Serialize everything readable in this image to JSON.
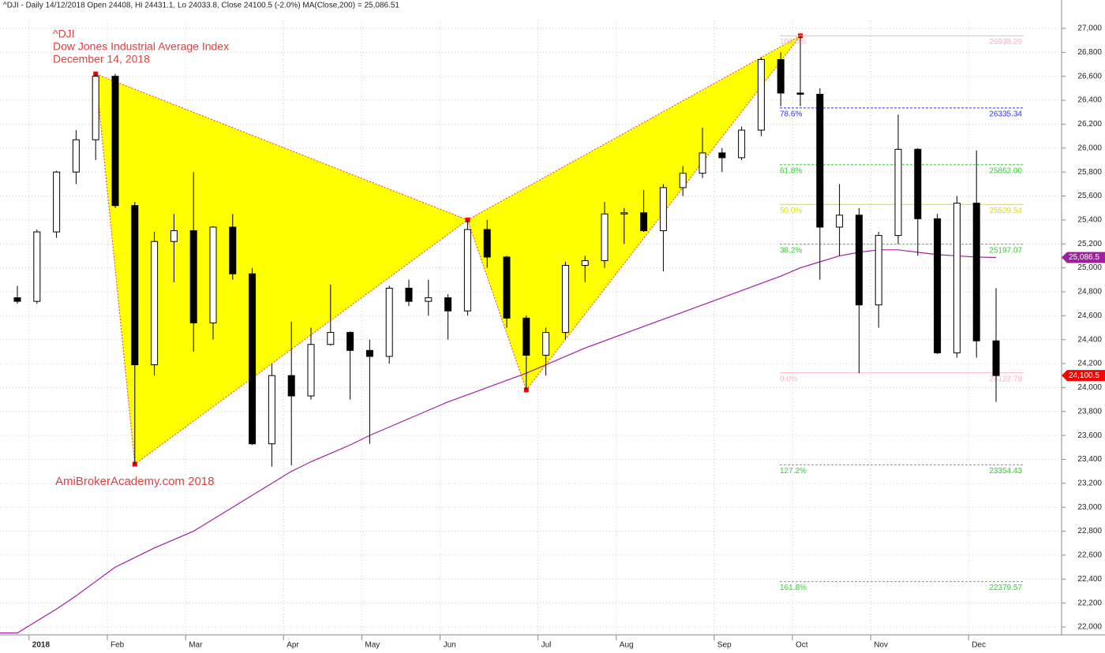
{
  "chart_data": {
    "type": "candlestick",
    "title": "^DJI - Daily 14/12/2018 Open 24408, Hi 24431.1, Lo 24033.8, Close 24100.5 (-2.0%) MA(Close,200) = 25,086.51",
    "annotations": [
      "^DJI",
      "Dow Jones Industrial Average Index",
      "December 14, 2018"
    ],
    "watermark": "AmiBrokerAcademy.com  2018",
    "categories": [
      null,
      "2018",
      null,
      null,
      null,
      "Feb",
      null,
      null,
      null,
      "Mar",
      null,
      null,
      null,
      null,
      "Apr",
      null,
      null,
      null,
      "May",
      null,
      null,
      null,
      "Jun",
      null,
      null,
      null,
      null,
      "Jul",
      null,
      null,
      null,
      "Aug",
      null,
      null,
      null,
      null,
      "Sep",
      null,
      null,
      null,
      "Oct",
      null,
      null,
      null,
      "Nov",
      null,
      null,
      null,
      null,
      "Dec",
      null
    ],
    "open": [
      24750,
      24720,
      25300,
      25800,
      26070,
      26600,
      25520,
      24190,
      25220,
      25310,
      24540,
      25340,
      24950,
      23530,
      24100,
      23930,
      24360,
      24460,
      24310,
      24260,
      24830,
      24720,
      24750,
      24640,
      25320,
      25090,
      24580,
      24270,
      24460,
      25020,
      25060,
      25450,
      25460,
      25310,
      25670,
      25790,
      25960,
      25920,
      26150,
      26740,
      26460,
      26450,
      25340,
      25440,
      24690,
      25270,
      25990,
      25410,
      24290,
      25540,
      24390
    ],
    "high": [
      24850,
      25320,
      25810,
      26150,
      26620,
      26620,
      25550,
      25300,
      25450,
      25800,
      25350,
      25450,
      25000,
      24200,
      24550,
      24500,
      24860,
      24470,
      24400,
      24850,
      24900,
      24900,
      24780,
      25400,
      25400,
      25100,
      24600,
      24500,
      25050,
      25100,
      25550,
      25500,
      25650,
      25700,
      25850,
      26170,
      26000,
      26180,
      26760,
      26800,
      26938,
      26500,
      25700,
      25500,
      25300,
      26280,
      26000,
      25450,
      25600,
      25980,
      24830
    ],
    "low": [
      24700,
      24700,
      25250,
      25700,
      25900,
      25500,
      23360,
      24100,
      24880,
      24300,
      24400,
      24900,
      23520,
      23340,
      23350,
      23900,
      24350,
      23900,
      23530,
      24200,
      24680,
      24600,
      24400,
      24600,
      25000,
      24500,
      23980,
      24100,
      24400,
      24880,
      25000,
      25200,
      25300,
      24970,
      25600,
      25750,
      25800,
      25900,
      26100,
      26350,
      26350,
      24900,
      25100,
      24120,
      24500,
      25200,
      25100,
      24280,
      24250,
      24250,
      23880
    ],
    "close": [
      24720,
      25300,
      25800,
      26070,
      26600,
      25520,
      24190,
      25220,
      25310,
      24540,
      25340,
      24950,
      23530,
      24100,
      23930,
      24360,
      24460,
      24310,
      24260,
      24830,
      24720,
      24750,
      24640,
      25320,
      25090,
      24580,
      24270,
      24460,
      25020,
      25060,
      25450,
      25460,
      25310,
      25670,
      25790,
      25960,
      25920,
      26150,
      26740,
      26460,
      26450,
      25340,
      25440,
      24690,
      25270,
      25990,
      25410,
      24290,
      25540,
      24390,
      24100
    ],
    "ma": {
      "name": "MA(Close,200)",
      "color": "#a020a0",
      "values": [
        21950,
        22050,
        22150,
        22260,
        22380,
        22500,
        22580,
        22660,
        22730,
        22800,
        22900,
        23000,
        23100,
        23200,
        23300,
        23380,
        23450,
        23520,
        23600,
        23670,
        23740,
        23810,
        23880,
        23940,
        24000,
        24060,
        24120,
        24190,
        24260,
        24330,
        24390,
        24450,
        24510,
        24570,
        24630,
        24690,
        24750,
        24810,
        24870,
        24930,
        25000,
        25050,
        25100,
        25130,
        25150,
        25150,
        25130,
        25110,
        25100,
        25090,
        25086.5
      ]
    },
    "pattern": {
      "color": "#ffff00",
      "values": [
        26620,
        23360,
        25400,
        23980,
        26938
      ]
    },
    "fib_levels": [
      {
        "label": "100.0%",
        "value": 26938.29,
        "value_label": "26938.29",
        "color": "#ffb0c0",
        "dashed": false
      },
      {
        "label": "78.6%",
        "value": 26335.34,
        "value_label": "26335.34",
        "color": "#3030ff",
        "dashed": true
      },
      {
        "label": "61.8%",
        "value": 25862.0,
        "value_label": "25862.00",
        "color": "#30d030",
        "dashed": true
      },
      {
        "label": "50.0%",
        "value": 25529.54,
        "value_label": "25529.54",
        "color": "#e0e000",
        "dashed": false
      },
      {
        "label": "38.2%",
        "value": 25197.07,
        "value_label": "25197.07",
        "color": "#30d030",
        "dashed": true
      },
      {
        "label": "0.0%",
        "value": 24122.79,
        "value_label": "24122.79",
        "color": "#ffb0c0",
        "dashed": false
      },
      {
        "label": "127.2%",
        "value": 23354.43,
        "value_label": "23354.43",
        "color": "#30d030",
        "dashed": true
      },
      {
        "label": "161.8%",
        "value": 22379.57,
        "value_label": "22379.57",
        "color": "#30d030",
        "dashed": true
      }
    ],
    "price_tags": [
      {
        "value": 25086.5,
        "label": "25,086.5",
        "color": "#a020a0"
      },
      {
        "value": 24100.5,
        "label": "24,100.5",
        "color": "#ff0000"
      }
    ],
    "ylim": [
      22000,
      27000
    ],
    "yticks": [
      {
        "value": 22000,
        "label": "22,000"
      },
      {
        "value": 22200,
        "label": "22,200"
      },
      {
        "value": 22400,
        "label": "22,400"
      },
      {
        "value": 22600,
        "label": "22,600"
      },
      {
        "value": 22800,
        "label": "22,800"
      },
      {
        "value": 23000,
        "label": "23,000"
      },
      {
        "value": 23200,
        "label": "23,200"
      },
      {
        "value": 23400,
        "label": "23,400"
      },
      {
        "value": 23600,
        "label": "23,600"
      },
      {
        "value": 23800,
        "label": "23,800"
      },
      {
        "value": 24000,
        "label": "24,000"
      },
      {
        "value": 24200,
        "label": "24,200"
      },
      {
        "value": 24400,
        "label": "24,400"
      },
      {
        "value": 24600,
        "label": "24,600"
      },
      {
        "value": 24800,
        "label": "24,800"
      },
      {
        "value": 25000,
        "label": "25,000"
      },
      {
        "value": 25200,
        "label": "25,200"
      },
      {
        "value": 25400,
        "label": "25,400"
      },
      {
        "value": 25600,
        "label": "25,600"
      },
      {
        "value": 25800,
        "label": "25,800"
      },
      {
        "value": 26000,
        "label": "26,000"
      },
      {
        "value": 26200,
        "label": "26,200"
      },
      {
        "value": 26400,
        "label": "26,400"
      },
      {
        "value": 26600,
        "label": "26,600"
      },
      {
        "value": 26800,
        "label": "26,800"
      },
      {
        "value": 27000,
        "label": "27,000"
      }
    ],
    "grid": true
  }
}
